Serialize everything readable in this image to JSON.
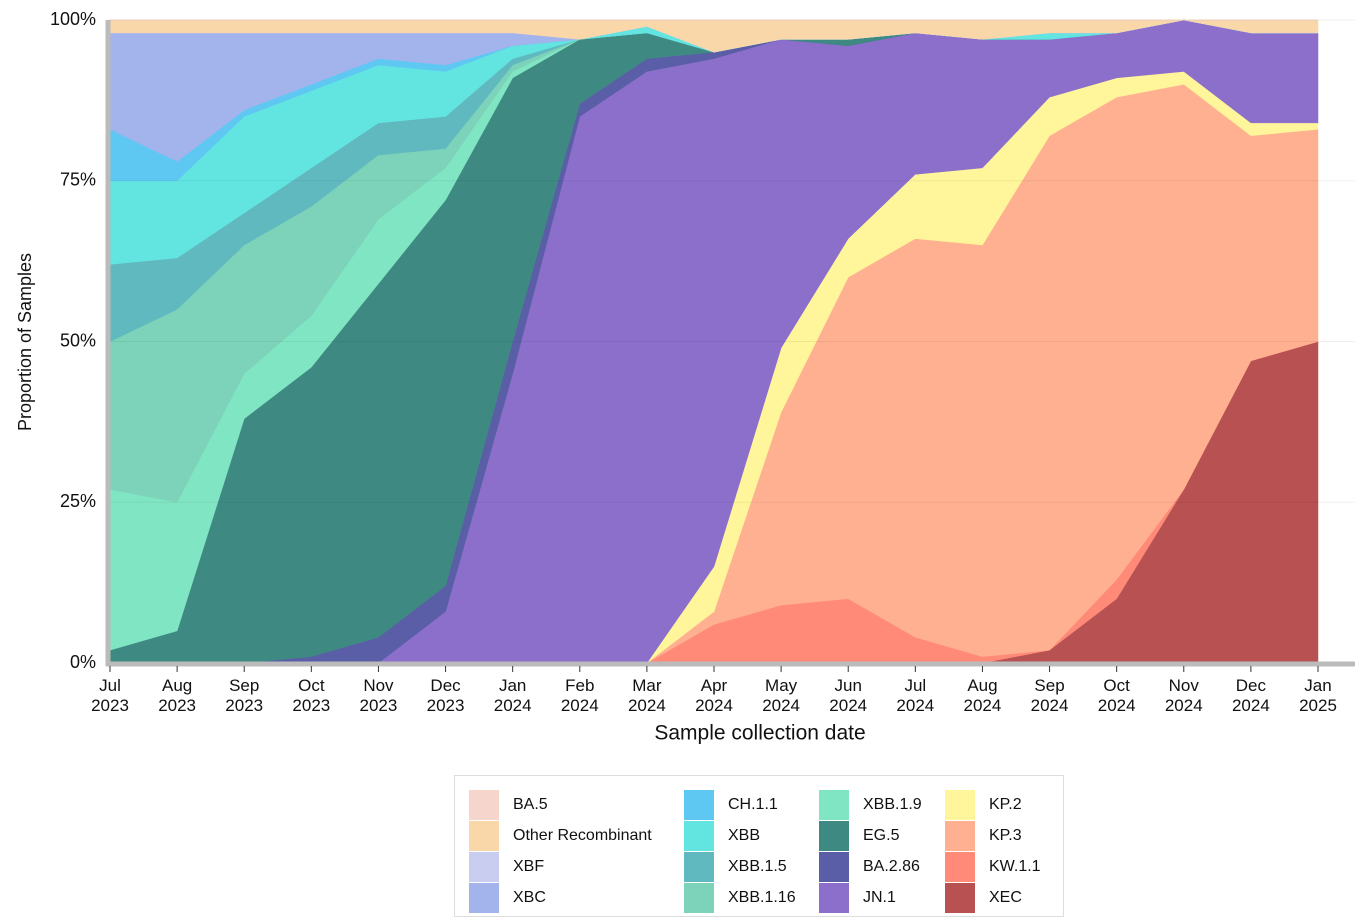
{
  "chart_data": {
    "type": "stacked_area",
    "y_label": "Proportion of Samples",
    "x_label": "Sample collection date",
    "categories": [
      "Jul\n2023",
      "Aug\n2023",
      "Sep\n2023",
      "Oct\n2023",
      "Nov\n2023",
      "Dec\n2023",
      "Jan\n2024",
      "Feb\n2024",
      "Mar\n2024",
      "Apr\n2024",
      "May\n2024",
      "Jun\n2024",
      "Jul\n2024",
      "Aug\n2024",
      "Sep\n2024",
      "Oct\n2024",
      "Nov\n2024",
      "Dec\n2024",
      "Jan\n2025"
    ],
    "ylim": [
      0,
      100
    ],
    "yticks": [
      {
        "value": 0,
        "label": "0%"
      },
      {
        "value": 25,
        "label": "25%"
      },
      {
        "value": 50,
        "label": "50%"
      },
      {
        "value": 75,
        "label": "75%"
      },
      {
        "value": 100,
        "label": "100%"
      }
    ],
    "grid": true,
    "series": [
      {
        "name": "BA.5",
        "color": "#f5d5cc",
        "values": [
          0,
          0,
          0,
          0,
          0,
          0,
          0,
          0,
          0,
          0,
          0,
          0,
          0,
          0,
          0,
          0,
          0,
          0,
          0
        ]
      },
      {
        "name": "Other Recombinant",
        "color": "#fad7a8",
        "values": [
          2,
          2,
          2,
          2,
          2,
          2,
          2,
          3,
          1,
          5,
          3,
          3,
          2,
          3,
          2,
          2,
          0,
          2,
          2
        ]
      },
      {
        "name": "XBF",
        "color": "#c9cdf0",
        "values": [
          0,
          0,
          0,
          0,
          0,
          0,
          0,
          0,
          0,
          0,
          0,
          0,
          0,
          0,
          0,
          0,
          0,
          0,
          0
        ]
      },
      {
        "name": "XBC",
        "color": "#a3b3ec",
        "values": [
          15,
          20,
          12,
          8,
          4,
          5,
          2,
          0,
          0,
          0,
          0,
          0,
          0,
          0,
          0,
          0,
          0,
          0,
          0
        ]
      },
      {
        "name": "CH.1.1",
        "color": "#5ec8f2",
        "values": [
          8,
          3,
          1,
          1,
          1,
          1,
          0,
          0,
          0,
          0,
          0,
          0,
          0,
          0,
          0,
          0,
          0,
          0,
          0
        ]
      },
      {
        "name": "XBB",
        "color": "#62e5e1",
        "values": [
          13,
          12,
          15,
          12,
          9,
          7,
          2,
          0,
          1,
          0,
          0,
          0,
          0,
          0,
          1,
          0,
          0,
          0,
          0
        ]
      },
      {
        "name": "XBB.1.5",
        "color": "#61b9c0",
        "values": [
          12,
          8,
          5,
          6,
          5,
          5,
          1,
          0,
          0,
          0,
          0,
          0,
          0,
          0,
          0,
          0,
          0,
          0,
          0
        ]
      },
      {
        "name": "XBB.1.16",
        "color": "#7dd3b9",
        "values": [
          23,
          30,
          20,
          17,
          10,
          3,
          1,
          0,
          0,
          0,
          0,
          0,
          0,
          0,
          0,
          0,
          0,
          0,
          0
        ]
      },
      {
        "name": "XBB.1.9",
        "color": "#80e5c2",
        "values": [
          25,
          20,
          7,
          8,
          10,
          5,
          1,
          0,
          0,
          0,
          0,
          0,
          0,
          0,
          0,
          0,
          0,
          0,
          0
        ]
      },
      {
        "name": "EG.5",
        "color": "#3e8a82",
        "values": [
          2,
          5,
          38,
          45,
          55,
          60,
          41,
          10,
          4,
          0,
          0,
          1,
          0,
          0,
          0,
          0,
          0,
          0,
          0
        ]
      },
      {
        "name": "BA.2.86",
        "color": "#5a5ea6",
        "values": [
          0,
          0,
          0,
          1,
          4,
          4,
          5,
          2,
          2,
          1,
          0,
          0,
          0,
          0,
          0,
          0,
          0,
          0,
          0
        ]
      },
      {
        "name": "JN.1",
        "color": "#8b6fcb",
        "values": [
          0,
          0,
          0,
          0,
          0,
          8,
          45,
          85,
          92,
          79,
          48,
          30,
          22,
          20,
          9,
          7,
          8,
          14,
          14
        ]
      },
      {
        "name": "KP.2",
        "color": "#fff59a",
        "values": [
          0,
          0,
          0,
          0,
          0,
          0,
          0,
          0,
          0,
          7,
          10,
          6,
          10,
          12,
          6,
          3,
          2,
          2,
          1
        ]
      },
      {
        "name": "KP.3",
        "color": "#ffb090",
        "values": [
          0,
          0,
          0,
          0,
          0,
          0,
          0,
          0,
          0,
          2,
          30,
          50,
          62,
          64,
          80,
          75,
          63,
          35,
          33
        ]
      },
      {
        "name": "KW.1.1",
        "color": "#ff8a78",
        "values": [
          0,
          0,
          0,
          0,
          0,
          0,
          0,
          0,
          0,
          6,
          9,
          10,
          4,
          1,
          0,
          3,
          0,
          0,
          0
        ]
      },
      {
        "name": "XEC",
        "color": "#b85252",
        "values": [
          0,
          0,
          0,
          0,
          0,
          0,
          0,
          0,
          0,
          0,
          0,
          0,
          0,
          0,
          2,
          10,
          27,
          47,
          50
        ]
      }
    ]
  }
}
